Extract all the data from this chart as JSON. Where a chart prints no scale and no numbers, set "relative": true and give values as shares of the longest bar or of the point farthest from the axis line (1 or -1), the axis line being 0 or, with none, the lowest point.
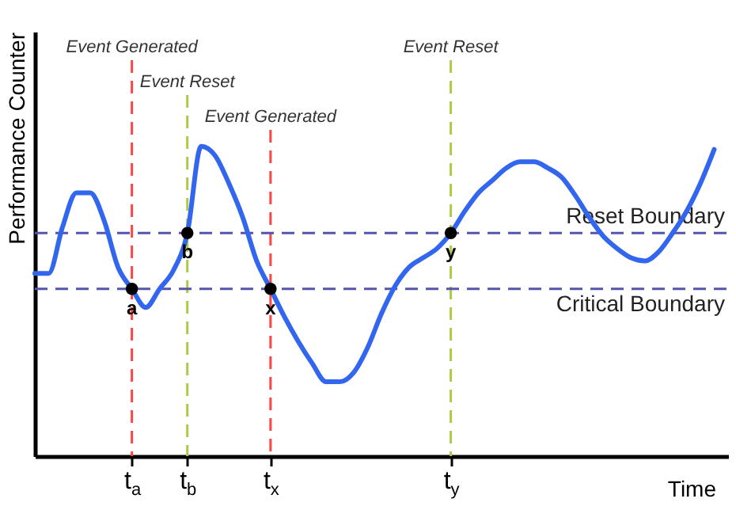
{
  "chart_data": {
    "type": "line",
    "relative": true,
    "ylabel": "Performance Counter",
    "xlabel": "Time",
    "categories": [
      null,
      null,
      null,
      null,
      null,
      null,
      null,
      "t$_{a}$",
      null,
      null,
      null,
      "t$_{b}$",
      null,
      null,
      null,
      null,
      null,
      "t$_{x}$",
      null,
      null,
      null,
      null,
      null,
      null,
      null,
      null,
      null,
      null,
      null,
      null,
      "t$_{y}$",
      null,
      null,
      null,
      null,
      null,
      null,
      null,
      null,
      null,
      null,
      null,
      null,
      null,
      null,
      null,
      null,
      null,
      null,
      null,
      null
    ],
    "series": [
      {
        "type": "line",
        "color": "#3366ee",
        "values": [
          0.59,
          0.59,
          0.74,
          0.85,
          0.85,
          0.76,
          0.61,
          0.54,
          0.48,
          0.54,
          0.6,
          0.72,
          1,
          0.97,
          0.88,
          0.77,
          0.63,
          0.54,
          0.45,
          0.37,
          0.3,
          0.24,
          0.24,
          0.27,
          0.35,
          0.46,
          0.55,
          0.61,
          0.64,
          0.67,
          0.72,
          0.79,
          0.85,
          0.89,
          0.93,
          0.95,
          0.95,
          0.93,
          0.9,
          0.84,
          0.77,
          0.71,
          0.67,
          0.64,
          0.63,
          0.66,
          0.72,
          0.79,
          0.88,
          0.99,
          null
        ]
      },
      {
        "type": "scatter",
        "color": "#000000",
        "x": [
          "t$_{a}$",
          "t$_{b}$",
          "t$_{x}$",
          "t$_{y}$"
        ],
        "values": [
          0.54,
          0.72,
          0.54,
          0.72
        ]
      }
    ],
    "ref_lines": [
      {
        "axis": "x",
        "value": "t$_{a}$",
        "label": "Event Generated",
        "color": "#ff4444",
        "line_style": "dashed"
      },
      {
        "axis": "x",
        "value": "t$_{b}$",
        "label": "Event Reset",
        "color": "#aacc44",
        "line_style": "dashed"
      },
      {
        "axis": "x",
        "value": "t$_{x}$",
        "label": "Event Generated",
        "color": "#ff4444",
        "line_style": "dashed"
      },
      {
        "axis": "x",
        "value": "t$_{y}$",
        "label": "Event Reset",
        "color": "#aacc44",
        "line_style": "dashed"
      },
      {
        "axis": "y",
        "value": 0.72,
        "label": "Reset Boundary",
        "color": "#5555aa",
        "line_style": "dashed"
      },
      {
        "axis": "y",
        "value": 0.54,
        "label": "Critical Boundary",
        "color": "#5555aa",
        "line_style": "dashed"
      }
    ],
    "annotations": [
      {
        "text": "a",
        "x": "t$_{a}$",
        "y": 0.54
      },
      {
        "text": "b",
        "x": "t$_{b}$",
        "y": 0.72
      },
      {
        "text": "x",
        "x": "t$_{x}$",
        "y": 0.54
      },
      {
        "text": "y",
        "x": "t$_{y}$",
        "y": 0.72
      }
    ]
  }
}
